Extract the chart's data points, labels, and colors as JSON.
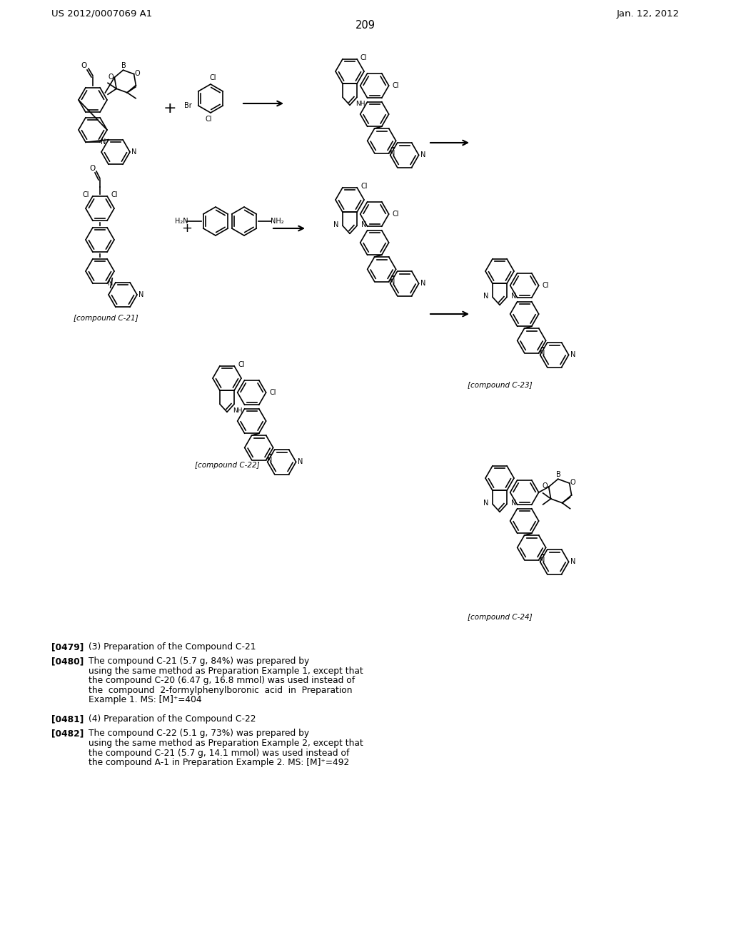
{
  "background_color": "#ffffff",
  "header_left": "US 2012/0007069 A1",
  "header_right": "Jan. 12, 2012",
  "page_number": "209",
  "body_paragraphs": [
    {
      "tag": "[0479]",
      "text": "(3) Preparation of the Compound C-21"
    },
    {
      "tag": "[0480]",
      "text": "The compound C-21 (5.7 g, 84%) was prepared by using the same method as Preparation Example 1, except that the compound C-20 (6.47 g, 16.8 mmol) was used instead of the compound  2-formylphenylboronic  acid  in  Preparation Example 1. MS: [M]⁺=404"
    },
    {
      "tag": "[0481]",
      "text": "(4) Preparation of the Compound C-22"
    },
    {
      "tag": "[0482]",
      "text": "The compound C-22 (5.1 g, 73%) was prepared by using the same method as Preparation Example 2, except that the compound C-21 (5.7 g, 14.1 mmol) was used instead of the compound A-1 in Preparation Example 2. MS: [M]⁺=492"
    }
  ],
  "compound_labels": [
    "[compound C-21]",
    "[compound C-22]",
    "[compound C-23]",
    "[compound C-24]"
  ]
}
